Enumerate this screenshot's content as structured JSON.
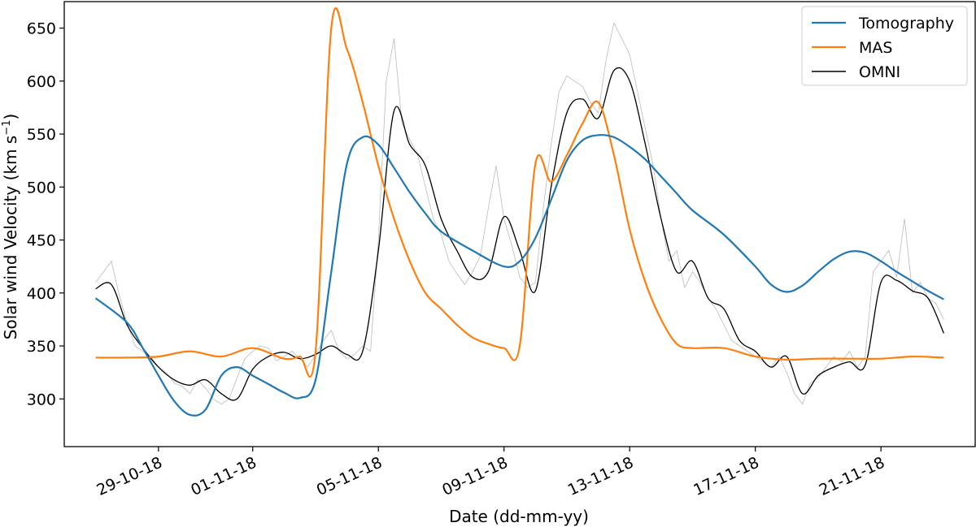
{
  "chart_data": {
    "type": "line",
    "xlabel": "Date (dd-mm-yy)",
    "ylabel": "Solar wind Velocity (km s",
    "ylabel_sup": "−1",
    "ylabel_close": ")",
    "xlim": [
      "2018-10-26",
      "2018-11-24"
    ],
    "ylim": [
      255,
      675
    ],
    "x_ticks": [
      "2018-10-29",
      "2018-11-01",
      "2018-11-05",
      "2018-11-09",
      "2018-11-13",
      "2018-11-17",
      "2018-11-21"
    ],
    "x_tick_labels": [
      "29-10-18",
      "01-11-18",
      "05-11-18",
      "09-11-18",
      "13-11-18",
      "17-11-18",
      "21-11-18"
    ],
    "y_ticks": [
      300,
      350,
      400,
      450,
      500,
      550,
      600,
      650
    ],
    "y_tick_labels": [
      "300",
      "350",
      "400",
      "450",
      "500",
      "550",
      "600",
      "650"
    ],
    "grid": false,
    "legend_position": "top-right",
    "series": [
      {
        "name": "Tomography",
        "color": "#1f77b4",
        "x": [
          "2018-10-27",
          "2018-10-28",
          "2018-10-28T12:00",
          "2018-10-29",
          "2018-10-29T12:00",
          "2018-10-30",
          "2018-10-30T12:00",
          "2018-10-31",
          "2018-10-31T12:00",
          "2018-11-01",
          "2018-11-01T12:00",
          "2018-11-02",
          "2018-11-02T12:00",
          "2018-11-03",
          "2018-11-03T12:00",
          "2018-11-04",
          "2018-11-04T12:00",
          "2018-11-05",
          "2018-11-05T12:00",
          "2018-11-06",
          "2018-11-06T12:00",
          "2018-11-07",
          "2018-11-08",
          "2018-11-09",
          "2018-11-09T12:00",
          "2018-11-10",
          "2018-11-10T12:00",
          "2018-11-11",
          "2018-11-11T12:00",
          "2018-11-12",
          "2018-11-12T12:00",
          "2018-11-13",
          "2018-11-13T12:00",
          "2018-11-14",
          "2018-11-14T12:00",
          "2018-11-15",
          "2018-11-16",
          "2018-11-17",
          "2018-11-17T12:00",
          "2018-11-18",
          "2018-11-18T12:00",
          "2018-11-19",
          "2018-11-19T12:00",
          "2018-11-20",
          "2018-11-20T12:00",
          "2018-11-21",
          "2018-11-21T12:00",
          "2018-11-22",
          "2018-11-22T12:00",
          "2018-11-23"
        ],
        "values": [
          395,
          372,
          348,
          322,
          298,
          285,
          290,
          322,
          330,
          322,
          314,
          306,
          301,
          318,
          420,
          522,
          547,
          540,
          518,
          495,
          475,
          458,
          440,
          425,
          430,
          452,
          488,
          525,
          544,
          549,
          547,
          538,
          526,
          510,
          494,
          478,
          455,
          425,
          408,
          401,
          407,
          420,
          432,
          439,
          438,
          430,
          420,
          411,
          402,
          394
        ]
      },
      {
        "name": "MAS",
        "color": "#ff7f0e",
        "x": [
          "2018-10-27",
          "2018-10-28",
          "2018-10-29",
          "2018-10-30",
          "2018-10-31",
          "2018-11-01",
          "2018-11-02",
          "2018-11-02T12:00",
          "2018-11-03",
          "2018-11-03T12:00",
          "2018-11-04",
          "2018-11-04T12:00",
          "2018-11-05",
          "2018-11-05T12:00",
          "2018-11-06",
          "2018-11-06T12:00",
          "2018-11-07",
          "2018-11-07T12:00",
          "2018-11-08",
          "2018-11-08T12:00",
          "2018-11-09",
          "2018-11-09T12:00",
          "2018-11-10",
          "2018-11-10T12:00",
          "2018-11-11",
          "2018-11-11T12:00",
          "2018-11-12",
          "2018-11-12T12:00",
          "2018-11-13",
          "2018-11-13T12:00",
          "2018-11-14",
          "2018-11-14T12:00",
          "2018-11-15",
          "2018-11-16",
          "2018-11-17",
          "2018-11-18",
          "2018-11-19",
          "2018-11-20",
          "2018-11-21",
          "2018-11-22",
          "2018-11-23"
        ],
        "values": [
          339,
          339,
          340,
          345,
          340,
          348,
          338,
          340,
          345,
          650,
          630,
          580,
          520,
          470,
          430,
          400,
          385,
          370,
          358,
          352,
          348,
          350,
          522,
          505,
          530,
          560,
          580,
          530,
          460,
          410,
          375,
          352,
          348,
          348,
          340,
          337,
          338,
          338,
          338,
          340,
          339
        ]
      },
      {
        "name": "OMNI",
        "color": "#000000",
        "x": [
          "2018-10-27",
          "2018-10-27T12:00",
          "2018-10-28",
          "2018-10-28T12:00",
          "2018-10-29",
          "2018-10-29T12:00",
          "2018-10-30",
          "2018-10-30T12:00",
          "2018-10-31",
          "2018-10-31T12:00",
          "2018-11-01",
          "2018-11-01T12:00",
          "2018-11-02",
          "2018-11-02T12:00",
          "2018-11-03",
          "2018-11-03T12:00",
          "2018-11-04",
          "2018-11-04T12:00",
          "2018-11-05",
          "2018-11-05T12:00",
          "2018-11-06",
          "2018-11-06T12:00",
          "2018-11-07",
          "2018-11-07T12:00",
          "2018-11-08",
          "2018-11-08T12:00",
          "2018-11-09",
          "2018-11-09T12:00",
          "2018-11-10",
          "2018-11-10T12:00",
          "2018-11-11",
          "2018-11-11T12:00",
          "2018-11-12",
          "2018-11-12T12:00",
          "2018-11-13",
          "2018-11-13T12:00",
          "2018-11-14",
          "2018-11-14T12:00",
          "2018-11-15",
          "2018-11-15T12:00",
          "2018-11-16",
          "2018-11-16T12:00",
          "2018-11-17",
          "2018-11-17T12:00",
          "2018-11-18",
          "2018-11-18T12:00",
          "2018-11-19",
          "2018-11-19T12:00",
          "2018-11-20",
          "2018-11-20T12:00",
          "2018-11-21",
          "2018-11-21T12:00",
          "2018-11-22",
          "2018-11-22T12:00",
          "2018-11-23"
        ],
        "values": [
          404,
          408,
          370,
          348,
          330,
          318,
          313,
          318,
          305,
          300,
          328,
          340,
          344,
          338,
          342,
          350,
          342,
          345,
          440,
          572,
          540,
          520,
          470,
          440,
          415,
          420,
          472,
          440,
          402,
          500,
          570,
          583,
          565,
          610,
          600,
          540,
          470,
          420,
          430,
          395,
          385,
          355,
          345,
          330,
          340,
          305,
          322,
          330,
          335,
          332,
          410,
          412,
          402,
          395,
          362
        ]
      },
      {
        "name": "",
        "color": "#bbbbbb",
        "x": [
          "2018-10-27",
          "2018-10-27T06:00",
          "2018-10-27T12:00",
          "2018-10-27T18:00",
          "2018-10-28",
          "2018-10-28T06:00",
          "2018-10-28T12:00",
          "2018-10-28T18:00",
          "2018-10-29",
          "2018-10-29T06:00",
          "2018-10-29T12:00",
          "2018-10-29T18:00",
          "2018-10-30",
          "2018-10-30T06:00",
          "2018-10-30T12:00",
          "2018-10-30T18:00",
          "2018-10-31",
          "2018-10-31T06:00",
          "2018-10-31T12:00",
          "2018-10-31T18:00",
          "2018-11-01",
          "2018-11-01T06:00",
          "2018-11-01T12:00",
          "2018-11-01T18:00",
          "2018-11-02",
          "2018-11-02T06:00",
          "2018-11-02T12:00",
          "2018-11-02T18:00",
          "2018-11-03",
          "2018-11-03T06:00",
          "2018-11-03T12:00",
          "2018-11-03T18:00",
          "2018-11-04",
          "2018-11-04T06:00",
          "2018-11-04T12:00",
          "2018-11-04T18:00",
          "2018-11-05",
          "2018-11-05T06:00",
          "2018-11-05T12:00",
          "2018-11-05T18:00",
          "2018-11-06",
          "2018-11-06T06:00",
          "2018-11-06T12:00",
          "2018-11-06T18:00",
          "2018-11-07",
          "2018-11-07T06:00",
          "2018-11-07T12:00",
          "2018-11-07T18:00",
          "2018-11-08",
          "2018-11-08T06:00",
          "2018-11-08T12:00",
          "2018-11-08T18:00",
          "2018-11-09",
          "2018-11-09T06:00",
          "2018-11-09T12:00",
          "2018-11-09T18:00",
          "2018-11-10",
          "2018-11-10T06:00",
          "2018-11-10T12:00",
          "2018-11-10T18:00",
          "2018-11-11",
          "2018-11-11T06:00",
          "2018-11-11T12:00",
          "2018-11-11T18:00",
          "2018-11-12",
          "2018-11-12T06:00",
          "2018-11-12T12:00",
          "2018-11-12T18:00",
          "2018-11-13",
          "2018-11-13T06:00",
          "2018-11-13T12:00",
          "2018-11-13T18:00",
          "2018-11-14",
          "2018-11-14T06:00",
          "2018-11-14T12:00",
          "2018-11-14T18:00",
          "2018-11-15",
          "2018-11-15T06:00",
          "2018-11-15T12:00",
          "2018-11-15T18:00",
          "2018-11-16",
          "2018-11-16T06:00",
          "2018-11-16T12:00",
          "2018-11-16T18:00",
          "2018-11-17",
          "2018-11-17T06:00",
          "2018-11-17T12:00",
          "2018-11-17T18:00",
          "2018-11-18",
          "2018-11-18T06:00",
          "2018-11-18T12:00",
          "2018-11-18T18:00",
          "2018-11-19",
          "2018-11-19T06:00",
          "2018-11-19T12:00",
          "2018-11-19T18:00",
          "2018-11-20",
          "2018-11-20T06:00",
          "2018-11-20T12:00",
          "2018-11-20T18:00",
          "2018-11-21",
          "2018-11-21T06:00",
          "2018-11-21T12:00",
          "2018-11-21T18:00",
          "2018-11-22",
          "2018-11-22T06:00",
          "2018-11-22T12:00",
          "2018-11-22T18:00",
          "2018-11-23"
        ],
        "values": [
          410,
          420,
          430,
          398,
          372,
          350,
          345,
          340,
          330,
          325,
          315,
          312,
          305,
          318,
          310,
          300,
          295,
          300,
          320,
          338,
          345,
          350,
          348,
          336,
          340,
          345,
          338,
          330,
          342,
          355,
          365,
          345,
          338,
          342,
          350,
          345,
          450,
          600,
          640,
          560,
          545,
          530,
          500,
          470,
          455,
          430,
          418,
          408,
          420,
          435,
          480,
          520,
          470,
          445,
          415,
          405,
          410,
          480,
          540,
          590,
          605,
          600,
          595,
          580,
          570,
          620,
          655,
          640,
          625,
          590,
          555,
          520,
          470,
          430,
          440,
          405,
          420,
          410,
          395,
          385,
          370,
          355,
          350,
          345,
          340,
          335,
          330,
          340,
          325,
          305,
          295,
          315,
          320,
          330,
          340,
          335,
          345,
          330,
          340,
          420,
          430,
          440,
          415,
          470,
          400,
          410,
          395,
          390,
          375
        ]
      }
    ]
  }
}
